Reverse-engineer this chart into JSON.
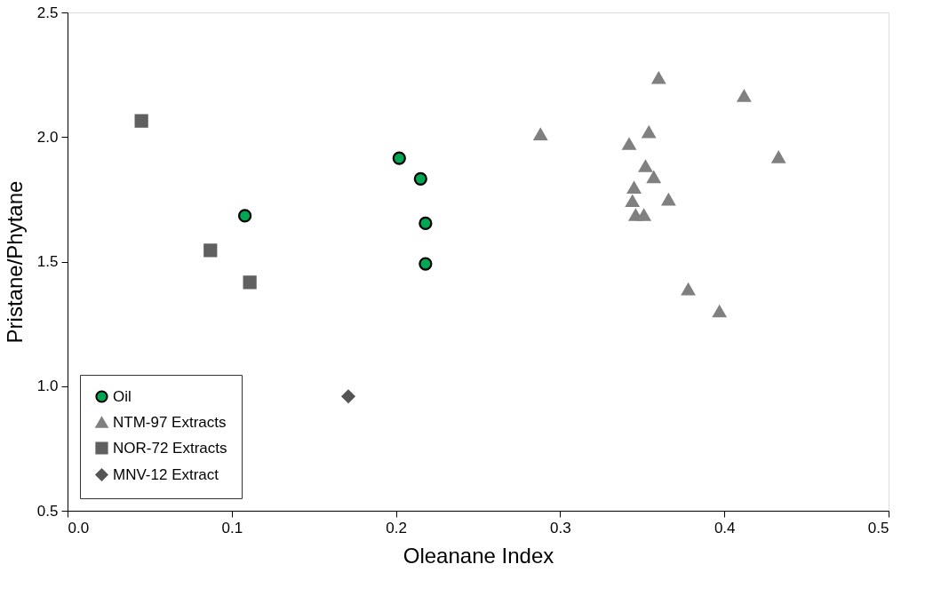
{
  "chart_data": {
    "type": "scatter",
    "xlabel": "Oleanane Index",
    "ylabel": "Pristane/Phytane",
    "xlim": [
      0.0,
      0.5
    ],
    "xticks": [
      {
        "value": 0,
        "label": "0.0"
      },
      0.1,
      0.2,
      0.3,
      0.4,
      0.5
    ],
    "ylim": [
      0.5,
      2.5
    ],
    "yticks": [
      0.5,
      {
        "value": 1,
        "label": "1.0"
      },
      1.5,
      {
        "value": 2,
        "label": "2.0"
      },
      2.5
    ],
    "grid": false,
    "legend": "bottom left",
    "series": [
      {
        "name": "Oil",
        "color": "#00a651",
        "marker": "circle",
        "x": [
          0.202,
          0.215,
          0.108,
          0.218,
          0.218
        ],
        "values": [
          1.915,
          1.832,
          1.684,
          1.654,
          1.491
        ]
      },
      {
        "name": "NTM-97 Extracts",
        "color": "#808080",
        "marker": "triangle",
        "x": [
          0.36,
          0.412,
          0.288,
          0.354,
          0.342,
          0.433,
          0.352,
          0.357,
          0.345,
          0.344,
          0.366,
          0.346,
          0.351,
          0.378,
          0.397
        ],
        "values": [
          2.237,
          2.165,
          2.011,
          2.02,
          1.972,
          1.919,
          1.883,
          1.839,
          1.797,
          1.743,
          1.749,
          1.687,
          1.687,
          1.389,
          1.3
        ]
      },
      {
        "name": "NOR-72 Extracts",
        "color": "#606060",
        "marker": "square",
        "x": [
          0.045,
          0.087,
          0.111
        ],
        "values": [
          2.065,
          1.545,
          1.417
        ]
      },
      {
        "name": "MNV-12 Extract",
        "color": "#555555",
        "marker": "diamond",
        "x": [
          0.171
        ],
        "values": [
          0.959
        ]
      }
    ]
  }
}
